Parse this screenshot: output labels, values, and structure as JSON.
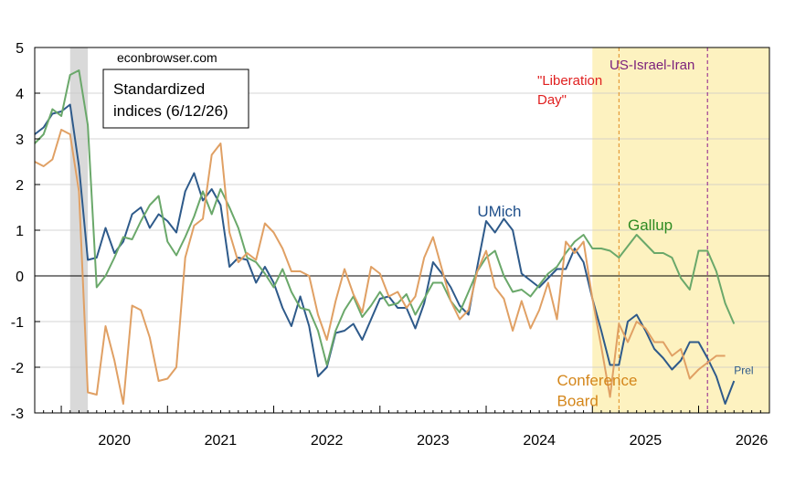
{
  "chart_data": {
    "type": "line",
    "title": "Standardized indices (6/12/26)",
    "source_label": "econbrowser.com",
    "xlim": [
      "2019-10",
      "2026-09"
    ],
    "ylim": [
      -3,
      5
    ],
    "y_ticks": [
      5,
      4,
      3,
      2,
      1,
      0,
      -1,
      -2,
      -3
    ],
    "x_ticks": [
      "2020",
      "2021",
      "2022",
      "2023",
      "2024",
      "2025",
      "2026"
    ],
    "grid": "horizontal",
    "recession_shading": {
      "start": "2020-02",
      "end": "2020-04"
    },
    "highlight_period": {
      "start": "2025-01",
      "end": "2026-09",
      "color": "#fdf2c0"
    },
    "events": [
      {
        "label_line1": "\"Liberation",
        "label_line2": "Day\"",
        "date": "2025-04",
        "color": "#e02020",
        "line_color": "#e08a1e"
      },
      {
        "label_line1": "US-Israel-Iran",
        "label_line2": "",
        "date": "2026-02",
        "color": "#7b1f7b",
        "line_color": "#8b1a8b"
      }
    ],
    "series": [
      {
        "name": "UMich",
        "color": "#2e5a8a",
        "points": [
          [
            "2019-10",
            3.1
          ],
          [
            "2019-11",
            3.25
          ],
          [
            "2019-12",
            3.55
          ],
          [
            "2020-01",
            3.6
          ],
          [
            "2020-02",
            3.75
          ],
          [
            "2020-03",
            2.4
          ],
          [
            "2020-04",
            0.35
          ],
          [
            "2020-05",
            0.4
          ],
          [
            "2020-06",
            1.05
          ],
          [
            "2020-07",
            0.5
          ],
          [
            "2020-08",
            0.75
          ],
          [
            "2020-09",
            1.35
          ],
          [
            "2020-10",
            1.5
          ],
          [
            "2020-11",
            1.05
          ],
          [
            "2020-12",
            1.35
          ],
          [
            "2021-01",
            1.2
          ],
          [
            "2021-02",
            0.95
          ],
          [
            "2021-03",
            1.85
          ],
          [
            "2021-04",
            2.25
          ],
          [
            "2021-05",
            1.65
          ],
          [
            "2021-06",
            1.9
          ],
          [
            "2021-07",
            1.55
          ],
          [
            "2021-08",
            0.2
          ],
          [
            "2021-09",
            0.4
          ],
          [
            "2021-10",
            0.35
          ],
          [
            "2021-11",
            -0.15
          ],
          [
            "2021-12",
            0.2
          ],
          [
            "2022-01",
            -0.15
          ],
          [
            "2022-02",
            -0.7
          ],
          [
            "2022-03",
            -1.1
          ],
          [
            "2022-04",
            -0.45
          ],
          [
            "2022-05",
            -1.1
          ],
          [
            "2022-06",
            -2.2
          ],
          [
            "2022-07",
            -2.0
          ],
          [
            "2022-08",
            -1.25
          ],
          [
            "2022-09",
            -1.2
          ],
          [
            "2022-10",
            -1.05
          ],
          [
            "2022-11",
            -1.4
          ],
          [
            "2022-12",
            -0.95
          ],
          [
            "2023-01",
            -0.5
          ],
          [
            "2023-02",
            -0.45
          ],
          [
            "2023-03",
            -0.7
          ],
          [
            "2023-04",
            -0.7
          ],
          [
            "2023-05",
            -1.15
          ],
          [
            "2023-06",
            -0.6
          ],
          [
            "2023-07",
            0.3
          ],
          [
            "2023-08",
            0.05
          ],
          [
            "2023-09",
            -0.25
          ],
          [
            "2023-10",
            -0.65
          ],
          [
            "2023-11",
            -0.85
          ],
          [
            "2023-12",
            0.2
          ],
          [
            "2024-01",
            1.2
          ],
          [
            "2024-02",
            0.95
          ],
          [
            "2024-03",
            1.25
          ],
          [
            "2024-04",
            1.0
          ],
          [
            "2024-05",
            0.05
          ],
          [
            "2024-06",
            -0.1
          ],
          [
            "2024-07",
            -0.25
          ],
          [
            "2024-08",
            -0.05
          ],
          [
            "2024-09",
            0.15
          ],
          [
            "2024-10",
            0.15
          ],
          [
            "2024-11",
            0.6
          ],
          [
            "2024-12",
            0.3
          ],
          [
            "2025-01",
            -0.5
          ],
          [
            "2025-02",
            -1.2
          ],
          [
            "2025-03",
            -1.95
          ],
          [
            "2025-04",
            -1.95
          ],
          [
            "2025-05",
            -1.0
          ],
          [
            "2025-06",
            -0.85
          ],
          [
            "2025-07",
            -1.2
          ],
          [
            "2025-08",
            -1.6
          ],
          [
            "2025-09",
            -1.8
          ],
          [
            "2025-10",
            -2.05
          ],
          [
            "2025-11",
            -1.85
          ],
          [
            "2025-12",
            -1.45
          ],
          [
            "2026-01",
            -1.45
          ],
          [
            "2026-02",
            -1.8
          ],
          [
            "2026-03",
            -2.2
          ],
          [
            "2026-04",
            -2.8
          ],
          [
            "2026-05",
            -2.3
          ]
        ]
      },
      {
        "name": "Gallup",
        "color": "#6aa86a",
        "points": [
          [
            "2019-10",
            2.9
          ],
          [
            "2019-11",
            3.1
          ],
          [
            "2019-12",
            3.65
          ],
          [
            "2020-01",
            3.5
          ],
          [
            "2020-02",
            4.4
          ],
          [
            "2020-03",
            4.5
          ],
          [
            "2020-04",
            3.3
          ],
          [
            "2020-05",
            -0.25
          ],
          [
            "2020-06",
            0.0
          ],
          [
            "2020-07",
            0.4
          ],
          [
            "2020-08",
            0.85
          ],
          [
            "2020-09",
            0.8
          ],
          [
            "2020-10",
            1.2
          ],
          [
            "2020-11",
            1.55
          ],
          [
            "2020-12",
            1.75
          ],
          [
            "2021-01",
            0.75
          ],
          [
            "2021-02",
            0.45
          ],
          [
            "2021-03",
            0.85
          ],
          [
            "2021-04",
            1.3
          ],
          [
            "2021-05",
            1.85
          ],
          [
            "2021-06",
            1.35
          ],
          [
            "2021-07",
            1.9
          ],
          [
            "2021-08",
            1.5
          ],
          [
            "2021-09",
            1.05
          ],
          [
            "2021-10",
            0.4
          ],
          [
            "2021-11",
            0.3
          ],
          [
            "2021-12",
            0.05
          ],
          [
            "2022-01",
            -0.25
          ],
          [
            "2022-02",
            0.15
          ],
          [
            "2022-03",
            -0.35
          ],
          [
            "2022-04",
            -0.7
          ],
          [
            "2022-05",
            -0.75
          ],
          [
            "2022-06",
            -1.2
          ],
          [
            "2022-07",
            -1.95
          ],
          [
            "2022-08",
            -1.2
          ],
          [
            "2022-09",
            -0.75
          ],
          [
            "2022-10",
            -0.45
          ],
          [
            "2022-11",
            -0.9
          ],
          [
            "2022-12",
            -0.65
          ],
          [
            "2023-01",
            -0.35
          ],
          [
            "2023-02",
            -0.65
          ],
          [
            "2023-03",
            -0.6
          ],
          [
            "2023-04",
            -0.4
          ],
          [
            "2023-05",
            -0.85
          ],
          [
            "2023-06",
            -0.5
          ],
          [
            "2023-07",
            -0.15
          ],
          [
            "2023-08",
            -0.15
          ],
          [
            "2023-09",
            -0.55
          ],
          [
            "2023-10",
            -0.8
          ],
          [
            "2023-11",
            -0.35
          ],
          [
            "2023-12",
            0.1
          ],
          [
            "2024-01",
            0.4
          ],
          [
            "2024-02",
            0.55
          ],
          [
            "2024-03",
            0.0
          ],
          [
            "2024-04",
            -0.35
          ],
          [
            "2024-05",
            -0.3
          ],
          [
            "2024-06",
            -0.45
          ],
          [
            "2024-07",
            -0.2
          ],
          [
            "2024-08",
            0.05
          ],
          [
            "2024-09",
            0.2
          ],
          [
            "2024-10",
            0.5
          ],
          [
            "2024-11",
            0.75
          ],
          [
            "2024-12",
            0.9
          ],
          [
            "2025-01",
            0.6
          ],
          [
            "2025-02",
            0.6
          ],
          [
            "2025-03",
            0.55
          ],
          [
            "2025-04",
            0.4
          ],
          [
            "2025-05",
            0.65
          ],
          [
            "2025-06",
            0.9
          ],
          [
            "2025-07",
            0.7
          ],
          [
            "2025-08",
            0.5
          ],
          [
            "2025-09",
            0.5
          ],
          [
            "2025-10",
            0.4
          ],
          [
            "2025-11",
            -0.05
          ],
          [
            "2025-12",
            -0.3
          ],
          [
            "2026-01",
            0.55
          ],
          [
            "2026-02",
            0.55
          ],
          [
            "2026-03",
            0.1
          ],
          [
            "2026-04",
            -0.6
          ],
          [
            "2026-05",
            -1.05
          ]
        ]
      },
      {
        "name": "Conference Board",
        "color": "#e0a064",
        "points": [
          [
            "2019-10",
            2.5
          ],
          [
            "2019-11",
            2.4
          ],
          [
            "2019-12",
            2.55
          ],
          [
            "2020-01",
            3.2
          ],
          [
            "2020-02",
            3.1
          ],
          [
            "2020-03",
            1.85
          ],
          [
            "2020-04",
            -2.55
          ],
          [
            "2020-05",
            -2.6
          ],
          [
            "2020-06",
            -1.1
          ],
          [
            "2020-07",
            -1.85
          ],
          [
            "2020-08",
            -2.8
          ],
          [
            "2020-09",
            -0.65
          ],
          [
            "2020-10",
            -0.75
          ],
          [
            "2020-11",
            -1.35
          ],
          [
            "2020-12",
            -2.3
          ],
          [
            "2021-01",
            -2.25
          ],
          [
            "2021-02",
            -2.0
          ],
          [
            "2021-03",
            0.4
          ],
          [
            "2021-04",
            1.1
          ],
          [
            "2021-05",
            1.25
          ],
          [
            "2021-06",
            2.65
          ],
          [
            "2021-07",
            2.9
          ],
          [
            "2021-08",
            0.95
          ],
          [
            "2021-09",
            0.3
          ],
          [
            "2021-10",
            0.5
          ],
          [
            "2021-11",
            0.35
          ],
          [
            "2021-12",
            1.15
          ],
          [
            "2022-01",
            0.95
          ],
          [
            "2022-02",
            0.6
          ],
          [
            "2022-03",
            0.1
          ],
          [
            "2022-04",
            0.1
          ],
          [
            "2022-05",
            0.0
          ],
          [
            "2022-06",
            -0.85
          ],
          [
            "2022-07",
            -1.4
          ],
          [
            "2022-08",
            -0.55
          ],
          [
            "2022-09",
            0.15
          ],
          [
            "2022-10",
            -0.4
          ],
          [
            "2022-11",
            -0.8
          ],
          [
            "2022-12",
            0.2
          ],
          [
            "2023-01",
            0.05
          ],
          [
            "2023-02",
            -0.45
          ],
          [
            "2023-03",
            -0.35
          ],
          [
            "2023-04",
            -0.7
          ],
          [
            "2023-05",
            -0.45
          ],
          [
            "2023-06",
            0.4
          ],
          [
            "2023-07",
            0.85
          ],
          [
            "2023-08",
            0.15
          ],
          [
            "2023-09",
            -0.55
          ],
          [
            "2023-10",
            -0.95
          ],
          [
            "2023-11",
            -0.75
          ],
          [
            "2023-12",
            0.1
          ],
          [
            "2024-01",
            0.55
          ],
          [
            "2024-02",
            -0.25
          ],
          [
            "2024-03",
            -0.5
          ],
          [
            "2024-04",
            -1.2
          ],
          [
            "2024-05",
            -0.55
          ],
          [
            "2024-06",
            -1.15
          ],
          [
            "2024-07",
            -0.75
          ],
          [
            "2024-08",
            -0.15
          ],
          [
            "2024-09",
            -0.95
          ],
          [
            "2024-10",
            0.75
          ],
          [
            "2024-11",
            0.5
          ],
          [
            "2024-12",
            0.75
          ],
          [
            "2025-01",
            -0.5
          ],
          [
            "2025-02",
            -1.55
          ],
          [
            "2025-03",
            -2.65
          ],
          [
            "2025-04",
            -1.05
          ],
          [
            "2025-05",
            -1.45
          ],
          [
            "2025-06",
            -1.0
          ],
          [
            "2025-07",
            -1.15
          ],
          [
            "2025-08",
            -1.45
          ],
          [
            "2025-09",
            -1.45
          ],
          [
            "2025-10",
            -1.75
          ],
          [
            "2025-11",
            -1.6
          ],
          [
            "2025-12",
            -2.25
          ],
          [
            "2026-01",
            -2.05
          ],
          [
            "2026-02",
            -1.9
          ],
          [
            "2026-03",
            -1.75
          ],
          [
            "2026-04",
            -1.75
          ]
        ]
      }
    ],
    "series_labels": [
      {
        "text": "UMich",
        "series": "UMich",
        "color": "#1f4f8a",
        "anchor": [
          "2023-12",
          1.3
        ]
      },
      {
        "text": "Gallup",
        "series": "Gallup",
        "color": "#2e8b22",
        "anchor": [
          "2025-05",
          1.0
        ]
      },
      {
        "text": "Conference",
        "series": "Conference Board",
        "color": "#d4861a",
        "anchor": [
          "2024-09",
          -2.4
        ]
      },
      {
        "text": "Board",
        "series": "Conference Board",
        "color": "#d4861a",
        "anchor": [
          "2024-09",
          -2.85
        ]
      },
      {
        "text": "Prel",
        "series": "UMich",
        "color": "#2e5a8a",
        "anchor": [
          "2026-05",
          -2.15
        ]
      }
    ]
  }
}
